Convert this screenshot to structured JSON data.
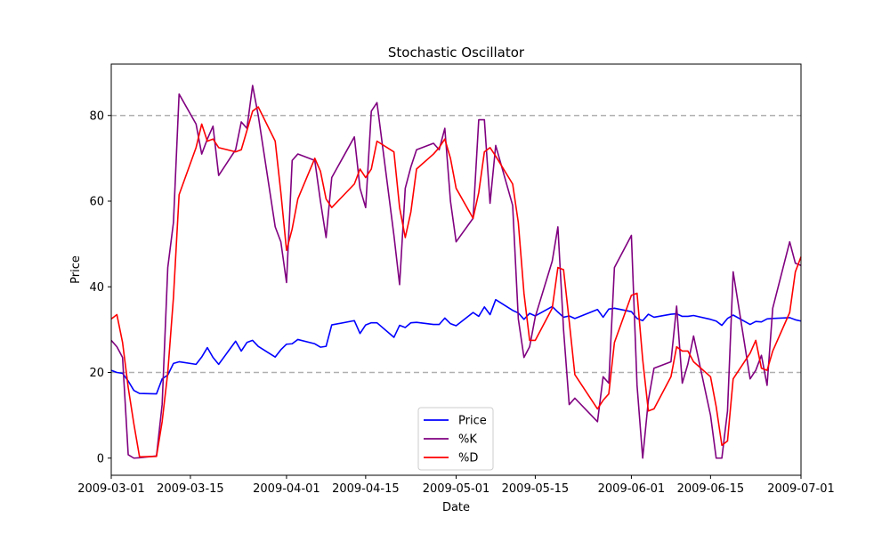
{
  "chart_data": {
    "type": "line",
    "title": "Stochastic Oscillator",
    "xlabel": "Date",
    "ylabel": "Price",
    "xlim": [
      "2009-03-01",
      "2009-07-01"
    ],
    "ylim": [
      -4,
      92
    ],
    "x_ticks": [
      "2009-03-01",
      "2009-03-15",
      "2009-04-01",
      "2009-04-15",
      "2009-05-01",
      "2009-05-15",
      "2009-06-01",
      "2009-06-15",
      "2009-07-01"
    ],
    "y_ticks": [
      0,
      20,
      40,
      60,
      80
    ],
    "reference_lines": [
      20,
      80
    ],
    "grid": false,
    "legend": {
      "placement": "bottom-center",
      "entries": [
        "Price",
        "%K",
        "%D"
      ]
    },
    "series": [
      {
        "name": "Price",
        "color": "#0000ff",
        "points": [
          [
            "2009-03-01",
            20.5
          ],
          [
            "2009-03-02",
            20.0
          ],
          [
            "2009-03-03",
            19.8
          ],
          [
            "2009-03-04",
            18.0
          ],
          [
            "2009-03-05",
            15.8
          ],
          [
            "2009-03-06",
            15.1
          ],
          [
            "2009-03-09",
            15.0
          ],
          [
            "2009-03-10",
            18.5
          ],
          [
            "2009-03-11",
            19.4
          ],
          [
            "2009-03-12",
            22.1
          ],
          [
            "2009-03-13",
            22.5
          ],
          [
            "2009-03-16",
            21.9
          ],
          [
            "2009-03-17",
            23.6
          ],
          [
            "2009-03-18",
            25.8
          ],
          [
            "2009-03-19",
            23.5
          ],
          [
            "2009-03-20",
            21.9
          ],
          [
            "2009-03-23",
            27.3
          ],
          [
            "2009-03-24",
            25.0
          ],
          [
            "2009-03-25",
            27.0
          ],
          [
            "2009-03-26",
            27.5
          ],
          [
            "2009-03-27",
            26.1
          ],
          [
            "2009-03-30",
            23.6
          ],
          [
            "2009-03-31",
            25.3
          ],
          [
            "2009-04-01",
            26.6
          ],
          [
            "2009-04-02",
            26.7
          ],
          [
            "2009-04-03",
            27.7
          ],
          [
            "2009-04-06",
            26.7
          ],
          [
            "2009-04-07",
            25.9
          ],
          [
            "2009-04-08",
            26.1
          ],
          [
            "2009-04-09",
            31.1
          ],
          [
            "2009-04-13",
            32.1
          ],
          [
            "2009-04-14",
            29.1
          ],
          [
            "2009-04-15",
            31.1
          ],
          [
            "2009-04-16",
            31.6
          ],
          [
            "2009-04-17",
            31.6
          ],
          [
            "2009-04-20",
            28.2
          ],
          [
            "2009-04-21",
            31.0
          ],
          [
            "2009-04-22",
            30.5
          ],
          [
            "2009-04-23",
            31.6
          ],
          [
            "2009-04-24",
            31.7
          ],
          [
            "2009-04-27",
            31.2
          ],
          [
            "2009-04-28",
            31.2
          ],
          [
            "2009-04-29",
            32.7
          ],
          [
            "2009-04-30",
            31.4
          ],
          [
            "2009-05-01",
            30.9
          ],
          [
            "2009-05-04",
            34.0
          ],
          [
            "2009-05-05",
            33.1
          ],
          [
            "2009-05-06",
            35.3
          ],
          [
            "2009-05-07",
            33.5
          ],
          [
            "2009-05-08",
            37.0
          ],
          [
            "2009-05-11",
            34.5
          ],
          [
            "2009-05-12",
            33.9
          ],
          [
            "2009-05-13",
            32.4
          ],
          [
            "2009-05-14",
            33.8
          ],
          [
            "2009-05-15",
            33.2
          ],
          [
            "2009-05-18",
            35.4
          ],
          [
            "2009-05-19",
            34.1
          ],
          [
            "2009-05-20",
            32.9
          ],
          [
            "2009-05-21",
            33.2
          ],
          [
            "2009-05-22",
            32.6
          ],
          [
            "2009-05-26",
            34.7
          ],
          [
            "2009-05-27",
            32.9
          ],
          [
            "2009-05-28",
            34.8
          ],
          [
            "2009-05-29",
            35.0
          ],
          [
            "2009-06-01",
            34.2
          ],
          [
            "2009-06-02",
            32.6
          ],
          [
            "2009-06-03",
            32.1
          ],
          [
            "2009-06-04",
            33.6
          ],
          [
            "2009-06-05",
            32.9
          ],
          [
            "2009-06-08",
            33.6
          ],
          [
            "2009-06-09",
            33.7
          ],
          [
            "2009-06-10",
            33.1
          ],
          [
            "2009-06-11",
            33.1
          ],
          [
            "2009-06-12",
            33.3
          ],
          [
            "2009-06-15",
            32.4
          ],
          [
            "2009-06-16",
            32.0
          ],
          [
            "2009-06-17",
            31.0
          ],
          [
            "2009-06-18",
            32.6
          ],
          [
            "2009-06-19",
            33.4
          ],
          [
            "2009-06-22",
            31.2
          ],
          [
            "2009-06-23",
            31.9
          ],
          [
            "2009-06-24",
            31.8
          ],
          [
            "2009-06-25",
            32.5
          ],
          [
            "2009-06-26",
            32.6
          ],
          [
            "2009-06-29",
            32.8
          ],
          [
            "2009-06-30",
            32.3
          ],
          [
            "2009-07-01",
            32.0
          ]
        ]
      },
      {
        "name": "%K",
        "color": "#800080",
        "points": [
          [
            "2009-03-01",
            27.5
          ],
          [
            "2009-03-02",
            26.0
          ],
          [
            "2009-03-03",
            23.5
          ],
          [
            "2009-03-04",
            0.8
          ],
          [
            "2009-03-05",
            0.0
          ],
          [
            "2009-03-06",
            0.1
          ],
          [
            "2009-03-09",
            0.5
          ],
          [
            "2009-03-10",
            12.5
          ],
          [
            "2009-03-11",
            44.5
          ],
          [
            "2009-03-12",
            55.0
          ],
          [
            "2009-03-13",
            85.0
          ],
          [
            "2009-03-16",
            78.0
          ],
          [
            "2009-03-17",
            71.0
          ],
          [
            "2009-03-18",
            74.5
          ],
          [
            "2009-03-19",
            77.5
          ],
          [
            "2009-03-20",
            66.0
          ],
          [
            "2009-03-23",
            72.0
          ],
          [
            "2009-03-24",
            78.5
          ],
          [
            "2009-03-25",
            77.0
          ],
          [
            "2009-03-26",
            87.0
          ],
          [
            "2009-03-27",
            80.0
          ],
          [
            "2009-03-30",
            54.0
          ],
          [
            "2009-03-31",
            50.5
          ],
          [
            "2009-04-01",
            41.0
          ],
          [
            "2009-04-02",
            69.5
          ],
          [
            "2009-04-03",
            71.0
          ],
          [
            "2009-04-06",
            69.5
          ],
          [
            "2009-04-07",
            60.0
          ],
          [
            "2009-04-08",
            51.5
          ],
          [
            "2009-04-09",
            65.5
          ],
          [
            "2009-04-13",
            75.0
          ],
          [
            "2009-04-14",
            63.0
          ],
          [
            "2009-04-15",
            58.5
          ],
          [
            "2009-04-16",
            81.0
          ],
          [
            "2009-04-17",
            83.0
          ],
          [
            "2009-04-20",
            52.0
          ],
          [
            "2009-04-21",
            40.5
          ],
          [
            "2009-04-22",
            63.0
          ],
          [
            "2009-04-23",
            68.0
          ],
          [
            "2009-04-24",
            72.0
          ],
          [
            "2009-04-27",
            73.5
          ],
          [
            "2009-04-28",
            72.0
          ],
          [
            "2009-04-29",
            77.0
          ],
          [
            "2009-04-30",
            60.0
          ],
          [
            "2009-05-01",
            50.5
          ],
          [
            "2009-05-04",
            56.0
          ],
          [
            "2009-05-05",
            79.0
          ],
          [
            "2009-05-06",
            79.0
          ],
          [
            "2009-05-07",
            59.5
          ],
          [
            "2009-05-08",
            73.0
          ],
          [
            "2009-05-11",
            59.0
          ],
          [
            "2009-05-12",
            32.5
          ],
          [
            "2009-05-13",
            23.5
          ],
          [
            "2009-05-14",
            26.0
          ],
          [
            "2009-05-15",
            33.0
          ],
          [
            "2009-05-18",
            46.0
          ],
          [
            "2009-05-19",
            54.0
          ],
          [
            "2009-05-20",
            30.0
          ],
          [
            "2009-05-21",
            12.5
          ],
          [
            "2009-05-22",
            14.0
          ],
          [
            "2009-05-26",
            8.5
          ],
          [
            "2009-05-27",
            19.0
          ],
          [
            "2009-05-28",
            17.5
          ],
          [
            "2009-05-29",
            44.5
          ],
          [
            "2009-06-01",
            52.0
          ],
          [
            "2009-06-02",
            17.0
          ],
          [
            "2009-06-03",
            0.0
          ],
          [
            "2009-06-04",
            13.5
          ],
          [
            "2009-06-05",
            21.0
          ],
          [
            "2009-06-08",
            22.5
          ],
          [
            "2009-06-09",
            35.5
          ],
          [
            "2009-06-10",
            17.5
          ],
          [
            "2009-06-11",
            22.0
          ],
          [
            "2009-06-12",
            28.5
          ],
          [
            "2009-06-15",
            10.0
          ],
          [
            "2009-06-16",
            0.0
          ],
          [
            "2009-06-17",
            0.0
          ],
          [
            "2009-06-18",
            11.0
          ],
          [
            "2009-06-19",
            43.5
          ],
          [
            "2009-06-22",
            18.5
          ],
          [
            "2009-06-23",
            20.5
          ],
          [
            "2009-06-24",
            24.0
          ],
          [
            "2009-06-25",
            17.0
          ],
          [
            "2009-06-26",
            35.0
          ],
          [
            "2009-06-29",
            50.5
          ],
          [
            "2009-06-30",
            45.5
          ],
          [
            "2009-07-01",
            45.0
          ]
        ]
      },
      {
        "name": "%D",
        "color": "#ff0000",
        "points": [
          [
            "2009-03-01",
            32.5
          ],
          [
            "2009-03-02",
            33.5
          ],
          [
            "2009-03-03",
            27.0
          ],
          [
            "2009-03-04",
            16.5
          ],
          [
            "2009-03-05",
            8.0
          ],
          [
            "2009-03-06",
            0.3
          ],
          [
            "2009-03-09",
            0.4
          ],
          [
            "2009-03-10",
            8.5
          ],
          [
            "2009-03-11",
            20.0
          ],
          [
            "2009-03-12",
            37.5
          ],
          [
            "2009-03-13",
            61.5
          ],
          [
            "2009-03-16",
            72.5
          ],
          [
            "2009-03-17",
            78.0
          ],
          [
            "2009-03-18",
            74.0
          ],
          [
            "2009-03-19",
            74.5
          ],
          [
            "2009-03-20",
            72.5
          ],
          [
            "2009-03-23",
            71.5
          ],
          [
            "2009-03-24",
            72.0
          ],
          [
            "2009-03-25",
            76.5
          ],
          [
            "2009-03-26",
            81.0
          ],
          [
            "2009-03-27",
            82.0
          ],
          [
            "2009-03-30",
            74.0
          ],
          [
            "2009-03-31",
            62.0
          ],
          [
            "2009-04-01",
            48.5
          ],
          [
            "2009-04-02",
            53.5
          ],
          [
            "2009-04-03",
            60.5
          ],
          [
            "2009-04-06",
            70.0
          ],
          [
            "2009-04-07",
            67.0
          ],
          [
            "2009-04-08",
            60.5
          ],
          [
            "2009-04-09",
            58.5
          ],
          [
            "2009-04-13",
            64.0
          ],
          [
            "2009-04-14",
            67.5
          ],
          [
            "2009-04-15",
            65.5
          ],
          [
            "2009-04-16",
            67.5
          ],
          [
            "2009-04-17",
            74.0
          ],
          [
            "2009-04-20",
            71.5
          ],
          [
            "2009-04-21",
            58.5
          ],
          [
            "2009-04-22",
            51.5
          ],
          [
            "2009-04-23",
            57.5
          ],
          [
            "2009-04-24",
            67.5
          ],
          [
            "2009-04-27",
            71.0
          ],
          [
            "2009-04-28",
            72.5
          ],
          [
            "2009-04-29",
            74.5
          ],
          [
            "2009-04-30",
            70.0
          ],
          [
            "2009-05-01",
            63.0
          ],
          [
            "2009-05-04",
            56.0
          ],
          [
            "2009-05-05",
            62.0
          ],
          [
            "2009-05-06",
            71.5
          ],
          [
            "2009-05-07",
            72.5
          ],
          [
            "2009-05-08",
            70.5
          ],
          [
            "2009-05-11",
            64.0
          ],
          [
            "2009-05-12",
            55.0
          ],
          [
            "2009-05-13",
            38.5
          ],
          [
            "2009-05-14",
            27.5
          ],
          [
            "2009-05-15",
            27.5
          ],
          [
            "2009-05-18",
            35.0
          ],
          [
            "2009-05-19",
            44.5
          ],
          [
            "2009-05-20",
            44.0
          ],
          [
            "2009-05-21",
            32.0
          ],
          [
            "2009-05-22",
            19.5
          ],
          [
            "2009-05-26",
            11.5
          ],
          [
            "2009-05-27",
            13.5
          ],
          [
            "2009-05-28",
            15.0
          ],
          [
            "2009-05-29",
            27.0
          ],
          [
            "2009-06-01",
            38.0
          ],
          [
            "2009-06-02",
            38.5
          ],
          [
            "2009-06-03",
            23.0
          ],
          [
            "2009-06-04",
            11.0
          ],
          [
            "2009-06-05",
            11.5
          ],
          [
            "2009-06-08",
            19.0
          ],
          [
            "2009-06-09",
            26.0
          ],
          [
            "2009-06-10",
            25.0
          ],
          [
            "2009-06-11",
            25.0
          ],
          [
            "2009-06-12",
            22.5
          ],
          [
            "2009-06-15",
            19.0
          ],
          [
            "2009-06-16",
            12.0
          ],
          [
            "2009-06-17",
            3.0
          ],
          [
            "2009-06-18",
            4.0
          ],
          [
            "2009-06-19",
            18.5
          ],
          [
            "2009-06-22",
            24.5
          ],
          [
            "2009-06-23",
            27.5
          ],
          [
            "2009-06-24",
            21.0
          ],
          [
            "2009-06-25",
            20.5
          ],
          [
            "2009-06-26",
            25.0
          ],
          [
            "2009-06-29",
            34.0
          ],
          [
            "2009-06-30",
            43.5
          ],
          [
            "2009-07-01",
            47.0
          ]
        ]
      }
    ]
  }
}
